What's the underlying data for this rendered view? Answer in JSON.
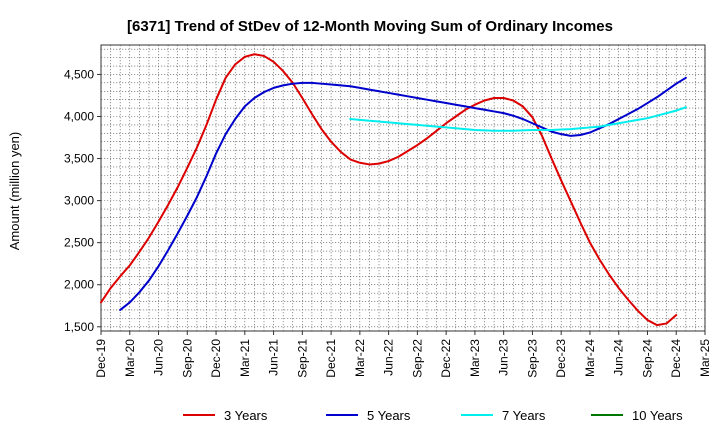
{
  "chart_data": {
    "type": "line",
    "title": "[6371]  Trend of StDev of 12-Month Moving Sum of Ordinary Incomes",
    "xlabel": "",
    "ylabel": "Amount (million yen)",
    "ylim": [
      1450,
      4850
    ],
    "yticks": [
      1500,
      2000,
      2500,
      3000,
      3500,
      4000,
      4500
    ],
    "ytick_labels": [
      "1,500",
      "2,000",
      "2,500",
      "3,000",
      "3,500",
      "4,000",
      "4,500"
    ],
    "x_tick_labels": [
      "Dec-19",
      "Mar-20",
      "Jun-20",
      "Sep-20",
      "Dec-20",
      "Mar-21",
      "Jun-21",
      "Sep-21",
      "Dec-21",
      "Mar-22",
      "Jun-22",
      "Sep-22",
      "Dec-22",
      "Mar-23",
      "Jun-23",
      "Sep-23",
      "Dec-23",
      "Mar-24",
      "Jun-24",
      "Sep-24",
      "Dec-24",
      "Mar-25"
    ],
    "grid": true,
    "legend_position": "bottom",
    "series": [
      {
        "name": "3 Years",
        "color": "#dd0000",
        "points": [
          [
            "Dec-19",
            1790
          ],
          [
            "Jan-20",
            1960
          ],
          [
            "Feb-20",
            2100
          ],
          [
            "Mar-20",
            2230
          ],
          [
            "Apr-20",
            2390
          ],
          [
            "May-20",
            2560
          ],
          [
            "Jun-20",
            2750
          ],
          [
            "Jul-20",
            2950
          ],
          [
            "Aug-20",
            3160
          ],
          [
            "Sep-20",
            3390
          ],
          [
            "Oct-20",
            3630
          ],
          [
            "Nov-20",
            3900
          ],
          [
            "Dec-20",
            4200
          ],
          [
            "Jan-21",
            4460
          ],
          [
            "Feb-21",
            4620
          ],
          [
            "Mar-21",
            4710
          ],
          [
            "Apr-21",
            4740
          ],
          [
            "May-21",
            4720
          ],
          [
            "Jun-21",
            4650
          ],
          [
            "Jul-21",
            4540
          ],
          [
            "Aug-21",
            4400
          ],
          [
            "Sep-21",
            4220
          ],
          [
            "Oct-21",
            4030
          ],
          [
            "Nov-21",
            3850
          ],
          [
            "Dec-21",
            3700
          ],
          [
            "Jan-22",
            3580
          ],
          [
            "Feb-22",
            3490
          ],
          [
            "Mar-22",
            3450
          ],
          [
            "Apr-22",
            3430
          ],
          [
            "May-22",
            3440
          ],
          [
            "Jun-22",
            3470
          ],
          [
            "Jul-22",
            3520
          ],
          [
            "Aug-22",
            3590
          ],
          [
            "Sep-22",
            3660
          ],
          [
            "Oct-22",
            3740
          ],
          [
            "Nov-22",
            3830
          ],
          [
            "Dec-22",
            3920
          ],
          [
            "Jan-23",
            4000
          ],
          [
            "Feb-23",
            4080
          ],
          [
            "Mar-23",
            4140
          ],
          [
            "Apr-23",
            4190
          ],
          [
            "May-23",
            4220
          ],
          [
            "Jun-23",
            4220
          ],
          [
            "Jul-23",
            4190
          ],
          [
            "Aug-23",
            4120
          ],
          [
            "Sep-23",
            3990
          ],
          [
            "Oct-23",
            3770
          ],
          [
            "Nov-23",
            3500
          ],
          [
            "Dec-23",
            3240
          ],
          [
            "Jan-24",
            2990
          ],
          [
            "Feb-24",
            2740
          ],
          [
            "Mar-24",
            2500
          ],
          [
            "Apr-24",
            2300
          ],
          [
            "May-24",
            2120
          ],
          [
            "Jun-24",
            1960
          ],
          [
            "Jul-24",
            1820
          ],
          [
            "Aug-24",
            1690
          ],
          [
            "Sep-24",
            1580
          ],
          [
            "Oct-24",
            1520
          ],
          [
            "Nov-24",
            1540
          ],
          [
            "Dec-24",
            1640
          ]
        ]
      },
      {
        "name": "5 Years",
        "color": "#0000cc",
        "points": [
          [
            "Feb-20",
            1700
          ],
          [
            "Mar-20",
            1790
          ],
          [
            "Apr-20",
            1910
          ],
          [
            "May-20",
            2050
          ],
          [
            "Jun-20",
            2220
          ],
          [
            "Jul-20",
            2410
          ],
          [
            "Aug-20",
            2610
          ],
          [
            "Sep-20",
            2820
          ],
          [
            "Oct-20",
            3040
          ],
          [
            "Nov-20",
            3290
          ],
          [
            "Dec-20",
            3560
          ],
          [
            "Jan-21",
            3790
          ],
          [
            "Feb-21",
            3970
          ],
          [
            "Mar-21",
            4120
          ],
          [
            "Apr-21",
            4220
          ],
          [
            "May-21",
            4290
          ],
          [
            "Jun-21",
            4340
          ],
          [
            "Jul-21",
            4370
          ],
          [
            "Aug-21",
            4390
          ],
          [
            "Sep-21",
            4400
          ],
          [
            "Oct-21",
            4400
          ],
          [
            "Nov-21",
            4390
          ],
          [
            "Dec-21",
            4380
          ],
          [
            "Jan-22",
            4370
          ],
          [
            "Feb-22",
            4360
          ],
          [
            "Mar-22",
            4340
          ],
          [
            "Apr-22",
            4320
          ],
          [
            "May-22",
            4300
          ],
          [
            "Jun-22",
            4280
          ],
          [
            "Jul-22",
            4260
          ],
          [
            "Aug-22",
            4240
          ],
          [
            "Sep-22",
            4220
          ],
          [
            "Oct-22",
            4200
          ],
          [
            "Nov-22",
            4180
          ],
          [
            "Dec-22",
            4160
          ],
          [
            "Jan-23",
            4140
          ],
          [
            "Feb-23",
            4120
          ],
          [
            "Mar-23",
            4100
          ],
          [
            "Apr-23",
            4080
          ],
          [
            "May-23",
            4060
          ],
          [
            "Jun-23",
            4040
          ],
          [
            "Jul-23",
            4010
          ],
          [
            "Aug-23",
            3970
          ],
          [
            "Sep-23",
            3920
          ],
          [
            "Oct-23",
            3870
          ],
          [
            "Nov-23",
            3820
          ],
          [
            "Dec-23",
            3790
          ],
          [
            "Jan-24",
            3770
          ],
          [
            "Feb-24",
            3780
          ],
          [
            "Mar-24",
            3810
          ],
          [
            "Apr-24",
            3860
          ],
          [
            "May-24",
            3910
          ],
          [
            "Jun-24",
            3970
          ],
          [
            "Jul-24",
            4030
          ],
          [
            "Aug-24",
            4090
          ],
          [
            "Sep-24",
            4160
          ],
          [
            "Oct-24",
            4230
          ],
          [
            "Nov-24",
            4310
          ],
          [
            "Dec-24",
            4390
          ],
          [
            "Jan-25",
            4460
          ]
        ]
      },
      {
        "name": "7 Years",
        "color": "#00eeee",
        "points": [
          [
            "Feb-22",
            3970
          ],
          [
            "Mar-22",
            3960
          ],
          [
            "Apr-22",
            3950
          ],
          [
            "May-22",
            3940
          ],
          [
            "Jun-22",
            3930
          ],
          [
            "Jul-22",
            3920
          ],
          [
            "Aug-22",
            3910
          ],
          [
            "Sep-22",
            3900
          ],
          [
            "Oct-22",
            3890
          ],
          [
            "Nov-22",
            3880
          ],
          [
            "Dec-22",
            3870
          ],
          [
            "Jan-23",
            3860
          ],
          [
            "Feb-23",
            3850
          ],
          [
            "Mar-23",
            3840
          ],
          [
            "Apr-23",
            3835
          ],
          [
            "May-23",
            3830
          ],
          [
            "Jun-23",
            3830
          ],
          [
            "Jul-23",
            3830
          ],
          [
            "Aug-23",
            3835
          ],
          [
            "Sep-23",
            3840
          ],
          [
            "Oct-23",
            3840
          ],
          [
            "Nov-23",
            3840
          ],
          [
            "Dec-23",
            3845
          ],
          [
            "Jan-24",
            3850
          ],
          [
            "Feb-24",
            3860
          ],
          [
            "Mar-24",
            3870
          ],
          [
            "Apr-24",
            3880
          ],
          [
            "May-24",
            3900
          ],
          [
            "Jun-24",
            3920
          ],
          [
            "Jul-24",
            3940
          ],
          [
            "Aug-24",
            3960
          ],
          [
            "Sep-24",
            3980
          ],
          [
            "Oct-24",
            4010
          ],
          [
            "Nov-24",
            4040
          ],
          [
            "Dec-24",
            4070
          ],
          [
            "Jan-25",
            4110
          ]
        ]
      },
      {
        "name": "10 Years",
        "color": "#007700",
        "points": []
      }
    ]
  }
}
